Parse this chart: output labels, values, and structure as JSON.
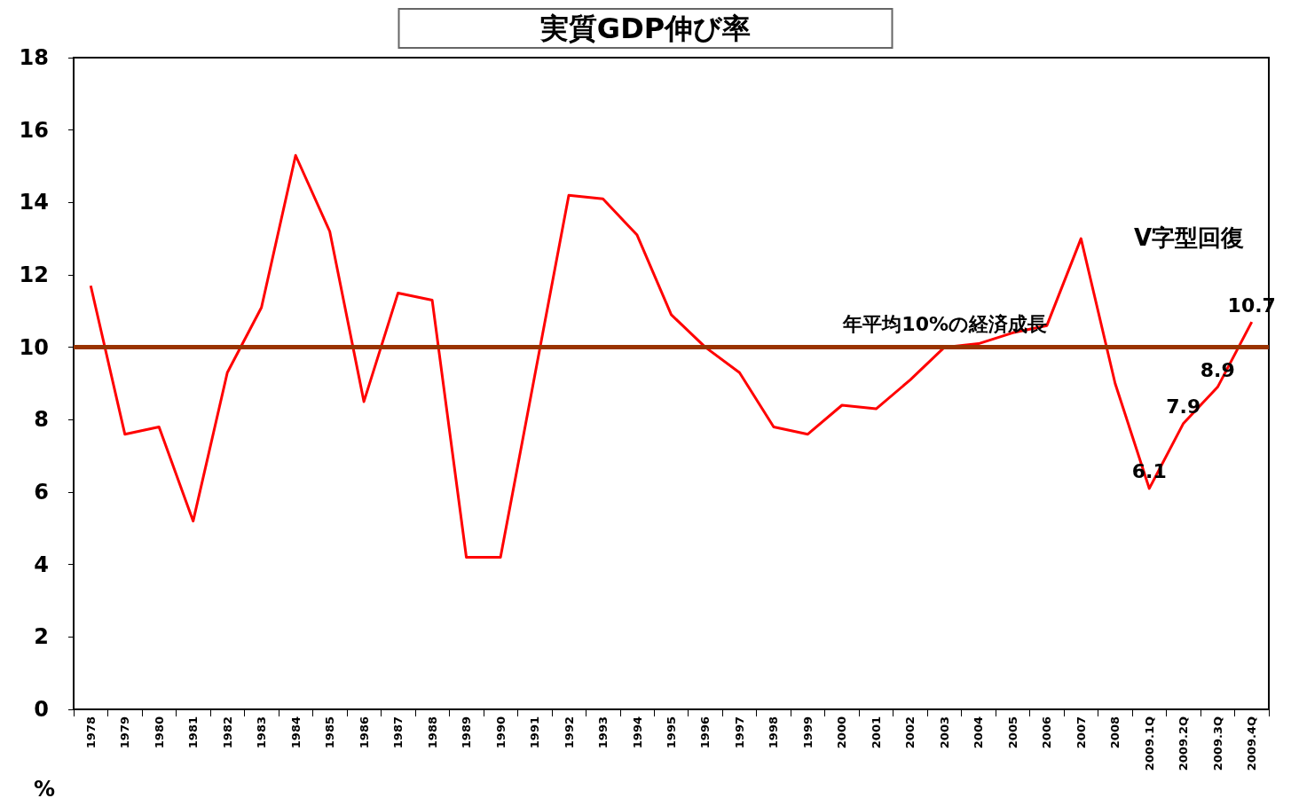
{
  "chart_data": {
    "type": "line",
    "title": "実質GDP伸び率",
    "ylabel": "%",
    "categories": [
      "1978",
      "1979",
      "1980",
      "1981",
      "1982",
      "1983",
      "1984",
      "1985",
      "1986",
      "1987",
      "1988",
      "1989",
      "1990",
      "1991",
      "1992",
      "1993",
      "1994",
      "1995",
      "1996",
      "1997",
      "1998",
      "1999",
      "2000",
      "2001",
      "2002",
      "2003",
      "2004",
      "2005",
      "2006",
      "2007",
      "2008",
      "2009.1Q",
      "2009.2Q",
      "2009.3Q",
      "2009.4Q"
    ],
    "series": [
      {
        "color": "#ff0000",
        "values": [
          11.7,
          7.6,
          7.8,
          5.2,
          9.3,
          11.1,
          15.3,
          13.2,
          8.5,
          11.5,
          11.3,
          4.2,
          4.2,
          9.2,
          14.2,
          14.1,
          13.1,
          10.9,
          10.0,
          9.3,
          7.8,
          7.6,
          8.4,
          8.3,
          9.1,
          10.0,
          10.1,
          10.4,
          10.6,
          13.0,
          9.0,
          6.1,
          7.9,
          8.9,
          10.7
        ],
        "value_labels": [
          null,
          null,
          null,
          null,
          null,
          null,
          null,
          null,
          null,
          null,
          null,
          null,
          null,
          null,
          null,
          null,
          null,
          null,
          null,
          null,
          null,
          null,
          null,
          null,
          null,
          null,
          null,
          null,
          null,
          null,
          null,
          "6.1",
          "7.9",
          "8.9",
          "10.7"
        ]
      }
    ],
    "ylim": [
      0,
      18
    ],
    "yticks": [
      0,
      2,
      4,
      6,
      8,
      10,
      12,
      14,
      16,
      18
    ],
    "grid": false,
    "marker": "none",
    "line_style": "solid",
    "ref_lines": [
      {
        "axis": "y",
        "value": 10,
        "label": "年平均10%の経済成長",
        "color": "#993300"
      }
    ],
    "annotations": [
      "V字型回復"
    ]
  }
}
